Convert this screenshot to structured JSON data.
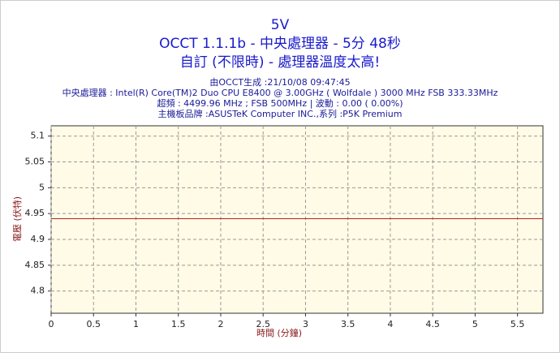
{
  "chart_data": {
    "type": "line",
    "title": "5V",
    "subtitles": [
      "OCCT 1.1.1b - 中央處理器 - 5分 48秒",
      "自訂 (不限時) - 處理器溫度太高!"
    ],
    "info": [
      "由OCCT生成 :21/10/08 09:47:45",
      "中央處理器 : Intel(R) Core(TM)2 Duo CPU E8400 @ 3.00GHz ( Wolfdale ) 3000 MHz FSB 333.33MHz",
      "超頻 : 4499.96 MHz ; FSB 500MHz | 波動 : 0.00 ( 0.00%)",
      "主機板品牌 :ASUSTeK Computer INC.,系列 :P5K Premium"
    ],
    "xlabel": "時間 (分鐘)",
    "ylabel": "電壓 (伏特)",
    "x": [
      0,
      5.8
    ],
    "series": [
      {
        "color": "#b22222",
        "values": [
          4.94,
          4.94
        ]
      }
    ],
    "xlim": [
      0,
      5.8
    ],
    "ylim": [
      4.757,
      5.12
    ],
    "xticks": [
      0,
      0.5,
      1,
      1.5,
      2,
      2.5,
      3,
      3.5,
      4,
      4.5,
      5,
      5.5
    ],
    "yticks": [
      4.8,
      4.85,
      4.9,
      4.95,
      5,
      5.05,
      5.1
    ],
    "grid": true
  }
}
